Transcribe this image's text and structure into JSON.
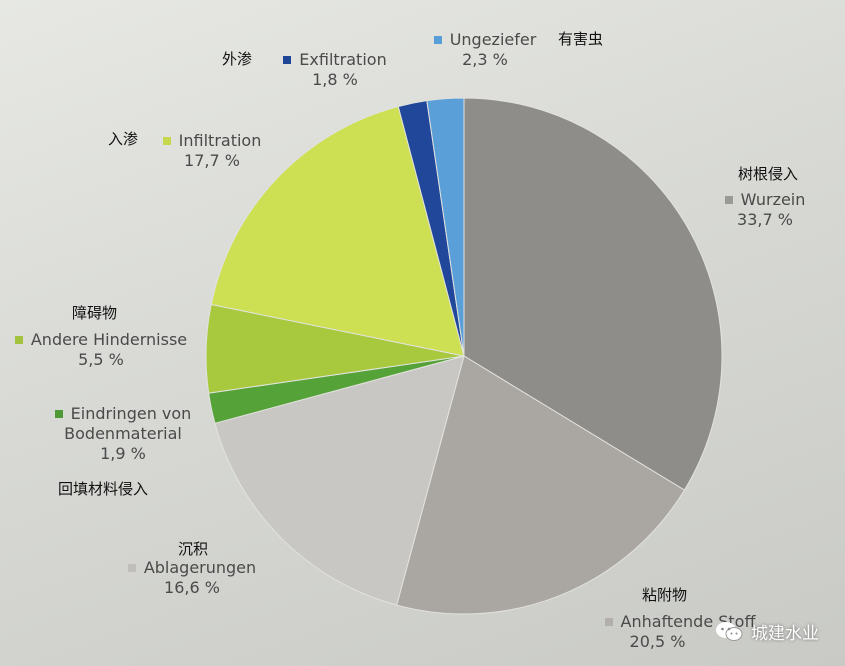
{
  "chart_data": {
    "type": "pie",
    "slices": [
      {
        "label": "Wurzein",
        "value": 33.7,
        "value_text": "33,7 %",
        "cn": "树根侵入",
        "color": "#8f8d8a",
        "swatch": "#9a9996"
      },
      {
        "label": "Anhaftende Stoffe",
        "label_visible": "Anhaftende Stoff",
        "value": 20.5,
        "value_text": "20,5 %",
        "cn": "粘附物",
        "color": "#aaa6a2",
        "swatch": "#b3afab"
      },
      {
        "label": "Ablagerungen",
        "value": 16.6,
        "value_text": "16,6 %",
        "cn": "沉积",
        "color": "#c9c7c3",
        "swatch": "#c0bebb"
      },
      {
        "label": "Eindringen von Bodenmaterial",
        "line1": "Eindringen von",
        "line2": "Bodenmaterial",
        "value": 1.9,
        "value_text": "1,9 %",
        "cn": "回填材料侵入",
        "color": "#55a238",
        "swatch": "#4e9a37"
      },
      {
        "label": "Andere Hindernisse",
        "value": 5.5,
        "value_text": "5,5 %",
        "cn": "障碍物",
        "color": "#a8c93e",
        "swatch": "#a3c23e"
      },
      {
        "label": "Infiltration",
        "value": 17.7,
        "value_text": "17,7 %",
        "cn": "入渗",
        "color": "#cde053",
        "swatch": "#c6d84d"
      },
      {
        "label": "Exfiltration",
        "value": 1.8,
        "value_text": "1,8 %",
        "cn": "外渗",
        "color": "#20479a",
        "swatch": "#1f4597"
      },
      {
        "label": "Ungeziefer",
        "value": 2.3,
        "value_text": "2,3 %",
        "cn": "有害虫",
        "color": "#5b9fd9",
        "swatch": "#5a9ed8"
      }
    ]
  },
  "watermark": {
    "text": "城建水业",
    "icon": "wechat-icon"
  }
}
